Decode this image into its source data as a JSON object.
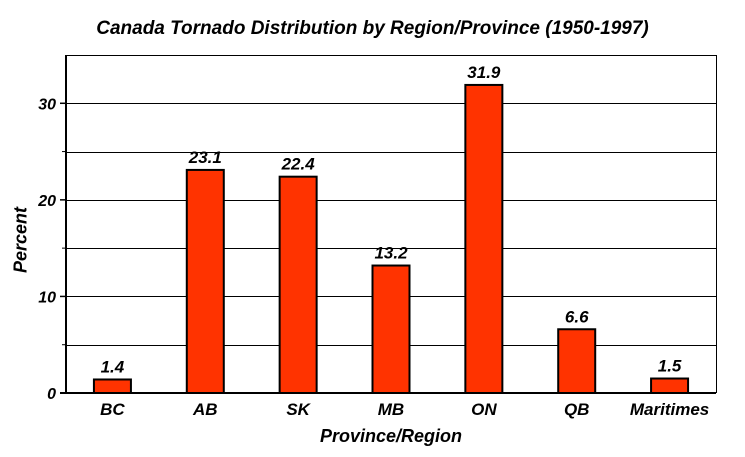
{
  "chart_data": {
    "type": "bar",
    "title": "Canada Tornado Distribution by Region/Province (1950-1997)",
    "xlabel": "Province/Region",
    "ylabel": "Percent",
    "categories": [
      "BC",
      "AB",
      "SK",
      "MB",
      "ON",
      "QB",
      "Maritimes"
    ],
    "values": [
      1.4,
      23.1,
      22.4,
      13.2,
      31.9,
      6.6,
      1.5
    ],
    "value_labels": [
      "1.4",
      "23.1",
      "22.4",
      "13.2",
      "31.9",
      "6.6",
      "1.5"
    ],
    "yticks": [
      0,
      10,
      20,
      30
    ],
    "ylim": [
      0,
      35
    ],
    "grid": true,
    "bar_color": "#ff3300"
  }
}
